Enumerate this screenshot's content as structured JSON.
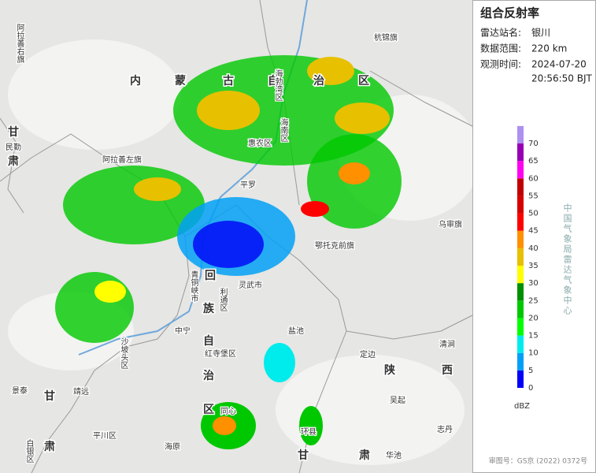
{
  "panel": {
    "title": "组合反射率",
    "fields": [
      {
        "label": "雷达站名:",
        "lines": [
          "银川"
        ]
      },
      {
        "label": "数据范围:",
        "lines": [
          "220 km"
        ]
      },
      {
        "label": "观测时间:",
        "lines": [
          "2024-07-20",
          "20:56:50 BJT"
        ]
      }
    ]
  },
  "scale": {
    "ticks": [
      0,
      5,
      10,
      15,
      20,
      25,
      30,
      35,
      40,
      45,
      50,
      55,
      60,
      65,
      70
    ],
    "colors": [
      "#0000f6",
      "#01a0f6",
      "#00ecec",
      "#01ff00",
      "#00c800",
      "#019000",
      "#ffff00",
      "#e7c000",
      "#ff9000",
      "#ff0000",
      "#d60000",
      "#c00000",
      "#ff00f0",
      "#9600b4",
      "#ad90f0"
    ],
    "unit": "dBZ",
    "credit": "中国气象局雷达气象中心"
  },
  "map": {
    "labels": [
      "阿拉善右旗",
      "内",
      "蒙",
      "古",
      "自",
      "治",
      "区",
      "杭锦旗",
      "甘",
      "民勤",
      "肃",
      "阿拉善左旗",
      "海勃湾区",
      "海南区",
      "惠农区",
      "平罗",
      "鄂托克前旗",
      "乌审旗",
      "青铜峡市",
      "灵武市",
      "利通区",
      "回",
      "族",
      "自",
      "治",
      "区",
      "中宁",
      "沙坡头区",
      "红寺堡区",
      "盐池",
      "定边",
      "陕",
      "西",
      "清涧",
      "靖远",
      "景泰",
      "吴起",
      "甘",
      "平川区",
      "白银区",
      "海原",
      "环县",
      "华池",
      "志丹",
      "肃",
      "甘",
      "肃",
      "同心"
    ]
  },
  "footer": "审图号：GS京 (2022) 0372号"
}
